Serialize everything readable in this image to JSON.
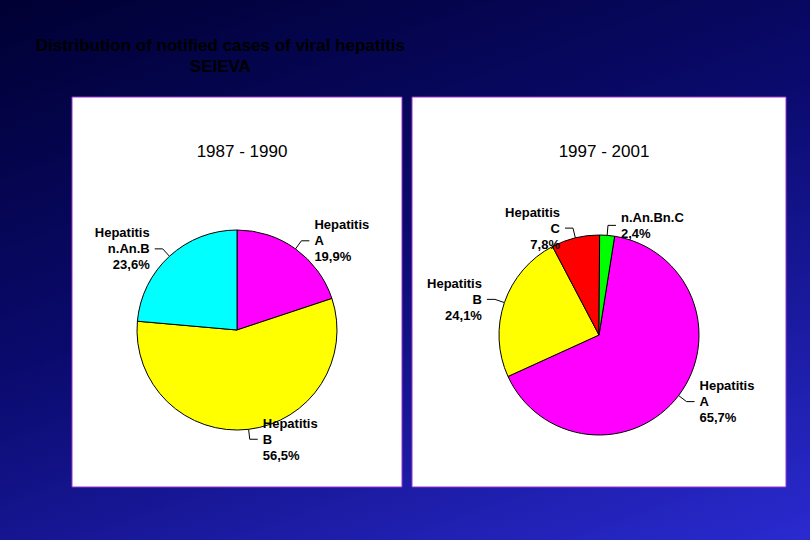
{
  "title": "Distribution of notified cases of viral hepatitis\nSEIEVA",
  "chart_data": [
    {
      "type": "pie",
      "title": "1987 - 1990",
      "categories": [
        "Hepatitis A",
        "Hepatitis B",
        "Hepatitis n.An.B"
      ],
      "values": [
        19.9,
        56.5,
        23.6
      ],
      "value_labels": [
        "19,9%",
        "56,5%",
        "23,6%"
      ],
      "colors": [
        "#ff00ff",
        "#ffff00",
        "#00ffff"
      ],
      "data_labels": true
    },
    {
      "type": "pie",
      "title": "1997 - 2001",
      "categories": [
        "Hepatitis A",
        "Hepatitis B",
        "Hepatitis C",
        "n.An.Bn.C"
      ],
      "values": [
        65.7,
        24.1,
        7.8,
        2.4
      ],
      "value_labels": [
        "65,7%",
        "24,1%",
        "7,8%",
        "2,4%"
      ],
      "colors": [
        "#ff00ff",
        "#ffff00",
        "#ff0000",
        "#00ff00"
      ],
      "data_labels": true
    }
  ]
}
